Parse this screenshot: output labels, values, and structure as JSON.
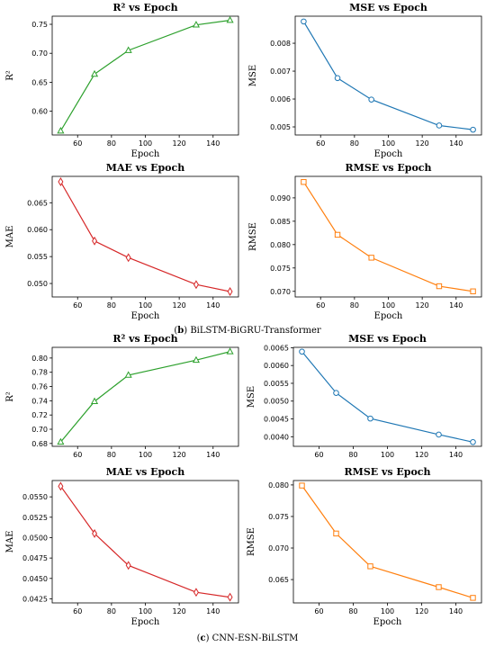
{
  "captions": [
    {
      "letter": "b",
      "text": "BiLSTM-BiGRU-Transformer"
    },
    {
      "letter": "c",
      "text": "CNN-ESN-BiLSTM"
    }
  ],
  "chart_data": [
    {
      "type": "line",
      "title": "R² vs Epoch",
      "xlabel": "Epoch",
      "ylabel": "R²",
      "x": [
        50,
        70,
        90,
        130,
        150
      ],
      "values": [
        0.566,
        0.664,
        0.705,
        0.749,
        0.757
      ],
      "xticks": [
        60,
        80,
        100,
        120,
        140
      ],
      "yticks": [
        0.6,
        0.65,
        0.7,
        0.75
      ],
      "ydec": 2,
      "xlim": [
        45,
        155
      ],
      "ylim": [
        0.559,
        0.764
      ],
      "color": "#2ca02c",
      "marker": "triangle"
    },
    {
      "type": "line",
      "title": "MSE vs Epoch",
      "xlabel": "Epoch",
      "ylabel": "MSE",
      "x": [
        50,
        70,
        90,
        130,
        150
      ],
      "values": [
        0.00878,
        0.00675,
        0.00598,
        0.00505,
        0.0049
      ],
      "xticks": [
        60,
        80,
        100,
        120,
        140
      ],
      "yticks": [
        0.005,
        0.006,
        0.007,
        0.008
      ],
      "ydec": 3,
      "xlim": [
        45,
        155
      ],
      "ylim": [
        0.00471,
        0.00897
      ],
      "color": "#1f77b4",
      "marker": "circle"
    },
    {
      "type": "line",
      "title": "MAE vs Epoch",
      "xlabel": "Epoch",
      "ylabel": "MAE",
      "x": [
        50,
        70,
        90,
        130,
        150
      ],
      "values": [
        0.0689,
        0.0579,
        0.0548,
        0.0498,
        0.0485
      ],
      "xticks": [
        60,
        80,
        100,
        120,
        140
      ],
      "yticks": [
        0.05,
        0.055,
        0.06,
        0.065
      ],
      "ydec": 3,
      "xlim": [
        45,
        155
      ],
      "ylim": [
        0.0475,
        0.0699
      ],
      "color": "#d62728",
      "marker": "diamond"
    },
    {
      "type": "line",
      "title": "RMSE vs Epoch",
      "xlabel": "Epoch",
      "ylabel": "RMSE",
      "x": [
        50,
        70,
        90,
        130,
        150
      ],
      "values": [
        0.0934,
        0.0821,
        0.0772,
        0.0711,
        0.07
      ],
      "xticks": [
        60,
        80,
        100,
        120,
        140
      ],
      "yticks": [
        0.07,
        0.075,
        0.08,
        0.085,
        0.09
      ],
      "ydec": 3,
      "xlim": [
        45,
        155
      ],
      "ylim": [
        0.0688,
        0.0946
      ],
      "color": "#ff7f0e",
      "marker": "square"
    },
    {
      "type": "line",
      "title": "R² vs Epoch",
      "xlabel": "",
      "ylabel": "R²",
      "x": [
        50,
        70,
        90,
        130,
        150
      ],
      "values": [
        0.682,
        0.739,
        0.776,
        0.797,
        0.809
      ],
      "xticks": [
        60,
        80,
        100,
        120,
        140
      ],
      "yticks": [
        0.68,
        0.7,
        0.72,
        0.74,
        0.76,
        0.78,
        0.8
      ],
      "ydec": 2,
      "xlim": [
        45,
        155
      ],
      "ylim": [
        0.676,
        0.815
      ],
      "color": "#2ca02c",
      "marker": "triangle"
    },
    {
      "type": "line",
      "title": "MSE vs Epoch",
      "xlabel": "",
      "ylabel": "MSE",
      "x": [
        50,
        70,
        90,
        130,
        150
      ],
      "values": [
        0.00639,
        0.00523,
        0.00451,
        0.00406,
        0.00385
      ],
      "xticks": [
        60,
        80,
        100,
        120,
        140
      ],
      "yticks": [
        0.004,
        0.0045,
        0.005,
        0.0055,
        0.006,
        0.0065
      ],
      "ydec": 4,
      "xlim": [
        45,
        155
      ],
      "ylim": [
        0.00373,
        0.00651
      ],
      "color": "#1f77b4",
      "marker": "circle"
    },
    {
      "type": "line",
      "title": "MAE vs Epoch",
      "xlabel": "Epoch",
      "ylabel": "MAE",
      "x": [
        50,
        70,
        90,
        130,
        150
      ],
      "values": [
        0.0563,
        0.0505,
        0.0466,
        0.0433,
        0.0427
      ],
      "xticks": [
        60,
        80,
        100,
        120,
        140
      ],
      "yticks": [
        0.0425,
        0.045,
        0.0475,
        0.05,
        0.0525,
        0.055
      ],
      "ydec": 4,
      "xlim": [
        45,
        155
      ],
      "ylim": [
        0.042,
        0.057
      ],
      "color": "#d62728",
      "marker": "diamond"
    },
    {
      "type": "line",
      "title": "RMSE vs Epoch",
      "xlabel": "Epoch",
      "ylabel": "RMSE",
      "x": [
        50,
        70,
        90,
        130,
        150
      ],
      "values": [
        0.0799,
        0.0723,
        0.0671,
        0.0638,
        0.0621
      ],
      "xticks": [
        60,
        80,
        100,
        120,
        140
      ],
      "yticks": [
        0.065,
        0.07,
        0.075,
        0.08
      ],
      "ydec": 3,
      "xlim": [
        45,
        155
      ],
      "ylim": [
        0.0613,
        0.0807
      ],
      "color": "#ff7f0e",
      "marker": "square"
    }
  ]
}
